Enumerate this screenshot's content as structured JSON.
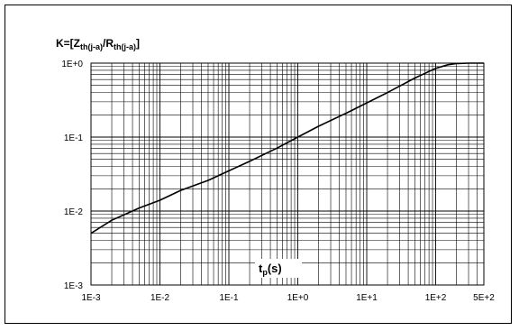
{
  "chart_data": {
    "type": "line",
    "title_main": "K=[Z",
    "title_sub1": "th(j-a)",
    "title_mid": "/R",
    "title_sub2": "th(j-a)",
    "title_end": "]",
    "xlabel_main": "t",
    "xlabel_sub": "p",
    "xlabel_end": "(s)",
    "x_scale": "log",
    "y_scale": "log",
    "xlim": [
      0.001,
      500
    ],
    "ylim": [
      0.001,
      1
    ],
    "grid": true,
    "x_ticks": [
      {
        "value": 0.001,
        "label": "1E-3"
      },
      {
        "value": 0.01,
        "label": "1E-2"
      },
      {
        "value": 0.1,
        "label": "1E-1"
      },
      {
        "value": 1,
        "label": "1E+0"
      },
      {
        "value": 10,
        "label": "1E+1"
      },
      {
        "value": 100,
        "label": "1E+2"
      },
      {
        "value": 500,
        "label": "5E+2"
      }
    ],
    "y_ticks": [
      {
        "value": 1,
        "label": "1E+0"
      },
      {
        "value": 0.1,
        "label": "1E-1"
      },
      {
        "value": 0.01,
        "label": "1E-2"
      },
      {
        "value": 0.001,
        "label": "1E-3"
      }
    ],
    "series": [
      {
        "x": [
          0.001,
          0.002,
          0.005,
          0.01,
          0.02,
          0.05,
          0.1,
          0.2,
          0.5,
          1,
          2,
          5,
          10,
          20,
          50,
          100,
          150,
          200,
          300,
          500
        ],
        "y": [
          0.005,
          0.0075,
          0.011,
          0.014,
          0.019,
          0.026,
          0.035,
          0.047,
          0.071,
          0.1,
          0.14,
          0.21,
          0.29,
          0.4,
          0.63,
          0.85,
          0.95,
          0.985,
          1.0,
          1.0
        ]
      }
    ]
  },
  "colors": {
    "line": "#000000",
    "grid": "#000000",
    "background": "#ffffff"
  }
}
